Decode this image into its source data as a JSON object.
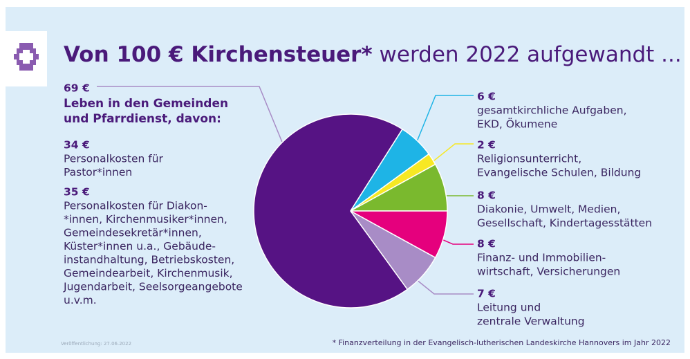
{
  "chart_data": {
    "type": "pie",
    "title_bold": "Von 100 € Kirchensteuer*",
    "title_rest": " werden 2022 aufgewandt ...",
    "categories": [
      [
        "Leben in den Gemeinden",
        "und Pfarrdienst, davon:"
      ],
      [
        "gesamtkirchliche Aufgaben,",
        "EKD, Ökumene"
      ],
      [
        "Religionsunterricht,",
        "Evangelische Schulen, Bildung"
      ],
      [
        "Diakonie, Umwelt, Medien,",
        "Gesellschaft, Kindertagesstätten"
      ],
      [
        "Finanz- und Immobilien-",
        "wirtschaft, Versicherungen"
      ],
      [
        "Leitung und",
        "zentrale Verwaltung"
      ]
    ],
    "values": [
      69,
      6,
      2,
      8,
      8,
      7
    ],
    "value_labels": [
      "69 €",
      "6 €",
      "2 €",
      "8 €",
      "8 €",
      "7 €"
    ],
    "colors": [
      "#561384",
      "#1eb4e6",
      "#f7e824",
      "#7ab92e",
      "#e5007d",
      "#a88cc6"
    ],
    "breakdown": [
      {
        "value": 34,
        "value_label": "34 €",
        "lines": [
          "Personalkosten für",
          "Pastor*innen"
        ]
      },
      {
        "value": 35,
        "value_label": "35 €",
        "lines": [
          "Personalkosten für Diakon-",
          "*innen, Kirchenmusiker*innen,",
          "Gemeindesekretär*innen,",
          "Küster*innen u.a., Gebäude-",
          "instandhaltung, Betriebskosten,",
          "Gemeindearbeit, Kirchenmusik,",
          "Jugendarbeit, Seelsorgeangebote",
          "u.v.m."
        ]
      }
    ],
    "published": "Veröffentlichung: 27.06.2022",
    "note": "* Finanzverteilung in der Evangelisch-lutherischen Landeskirche Hannovers im Jahr 2022"
  }
}
